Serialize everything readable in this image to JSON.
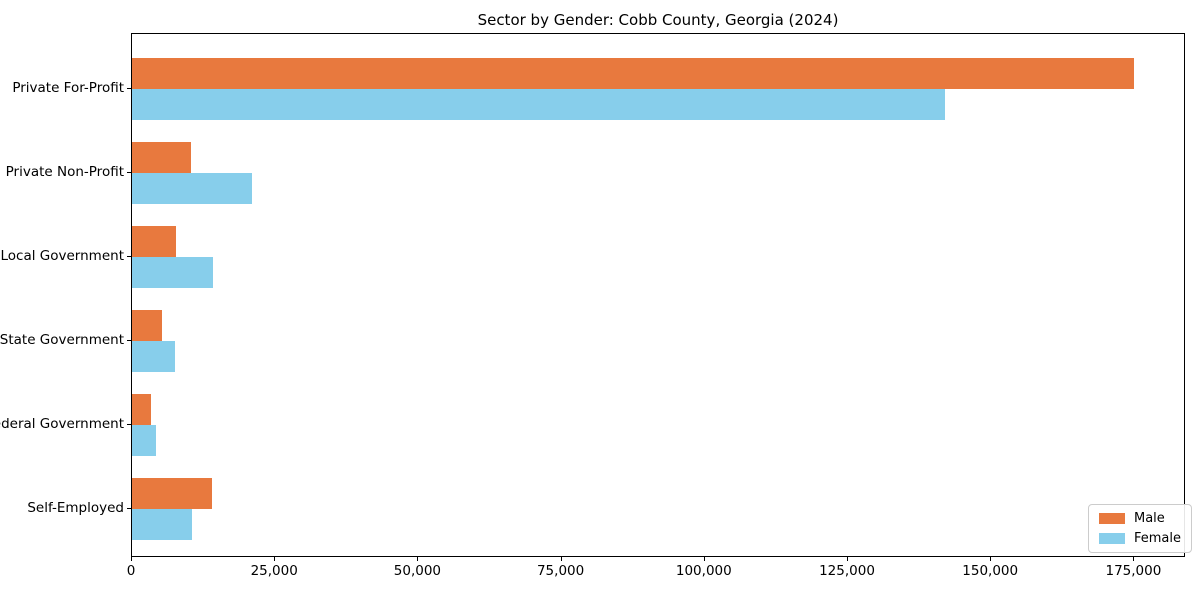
{
  "chart_data": {
    "type": "bar",
    "orientation": "horizontal",
    "title": "Sector by Gender: Cobb County, Georgia (2024)",
    "categories": [
      "Private For-Profit",
      "Private Non-Profit",
      "Local Government",
      "State Government",
      "Federal Government",
      "Self-Employed"
    ],
    "series": [
      {
        "name": "Male",
        "color": "#E8793E",
        "values": [
          175000,
          10300,
          7700,
          5200,
          3300,
          14000
        ]
      },
      {
        "name": "Female",
        "color": "#87CEEB",
        "values": [
          142000,
          21000,
          14200,
          7500,
          4200,
          10400
        ]
      }
    ],
    "xlabel": "",
    "ylabel": "",
    "xlim": [
      0,
      184000
    ],
    "xticks": [
      0,
      25000,
      50000,
      75000,
      100000,
      125000,
      150000,
      175000
    ],
    "xtick_labels": [
      "0",
      "25,000",
      "50,000",
      "75,000",
      "100,000",
      "125,000",
      "150,000",
      "175,000"
    ],
    "grid": false,
    "legend": {
      "position": "lower-right",
      "entries": [
        "Male",
        "Female"
      ]
    }
  }
}
